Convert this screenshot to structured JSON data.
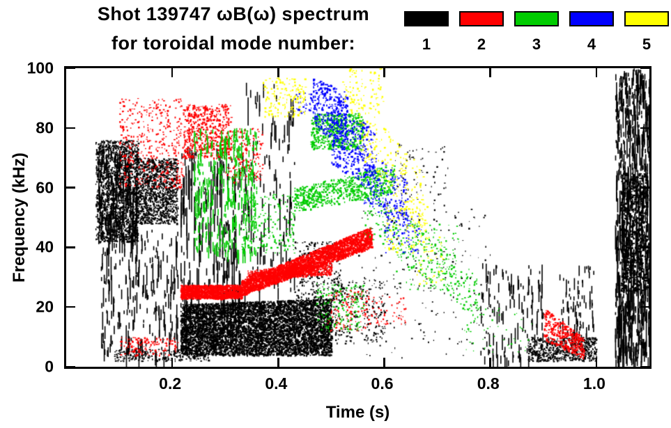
{
  "header": {
    "title_line1": "Shot 139747 ωB(ω) spectrum",
    "title_line2": "for toroidal mode number:"
  },
  "legend": {
    "items": [
      {
        "label": "1",
        "color": "#000000"
      },
      {
        "label": "2",
        "color": "#ff0000"
      },
      {
        "label": "3",
        "color": "#00cc00"
      },
      {
        "label": "4",
        "color": "#0000ff"
      },
      {
        "label": "5",
        "color": "#ffff00"
      }
    ]
  },
  "chart_data": {
    "type": "scatter",
    "title": "Shot 139747 ωB(ω) spectrum for toroidal mode number",
    "xlabel": "Time (s)",
    "ylabel": "Frequency (kHz)",
    "xlim": [
      0.0,
      1.1
    ],
    "ylim": [
      0,
      100
    ],
    "grid": false,
    "legend_position": "top-right",
    "xticks": [
      {
        "value": 0.2,
        "label": "0.2"
      },
      {
        "value": 0.4,
        "label": "0.4"
      },
      {
        "value": 0.6,
        "label": "0.6"
      },
      {
        "value": 0.8,
        "label": "0.8"
      },
      {
        "value": 1.0,
        "label": "1.0"
      }
    ],
    "yticks": [
      {
        "value": 0,
        "label": "0"
      },
      {
        "value": 20,
        "label": "20"
      },
      {
        "value": 40,
        "label": "40"
      },
      {
        "value": 60,
        "label": "60"
      },
      {
        "value": 80,
        "label": "80"
      },
      {
        "value": 100,
        "label": "100"
      }
    ],
    "series": [
      {
        "name": "n=1",
        "mode_number": 1,
        "color": "#000000",
        "clusters": [
          {
            "t": [
              0.055,
              0.135
            ],
            "f0": [
              42,
              76
            ],
            "n": 1600,
            "size": 2
          },
          {
            "t": [
              0.06,
              0.135
            ],
            "f0": [
              44,
              74
            ],
            "n": 260,
            "streak": 10
          },
          {
            "t": [
              0.13,
              0.21
            ],
            "f0": [
              48,
              70
            ],
            "n": 1300,
            "size": 2
          },
          {
            "t": [
              0.065,
              0.21
            ],
            "f0": [
              5,
              46
            ],
            "n": 240,
            "streak": 13
          },
          {
            "t": [
              0.09,
              0.27
            ],
            "f0": [
              2,
              6
            ],
            "n": 240,
            "size": 2
          },
          {
            "t": [
              0.215,
              0.5
            ],
            "f0": [
              4,
              21
            ],
            "f1": [
              4,
              23
            ],
            "n": 6000,
            "size": 2.2
          },
          {
            "t": [
              0.215,
              0.33
            ],
            "f0": [
              20,
              74
            ],
            "n": 210,
            "streak": 24
          },
          {
            "t": [
              0.33,
              0.43
            ],
            "f0": [
              25,
              97
            ],
            "n": 120,
            "streak": 16
          },
          {
            "t": [
              0.43,
              0.52
            ],
            "f0": [
              22,
              42
            ],
            "n": 280,
            "size": 2
          },
          {
            "t": [
              0.5,
              0.6
            ],
            "f0": [
              8,
              30
            ],
            "n": 220,
            "size": 2
          },
          {
            "t": [
              0.55,
              0.8
            ],
            "f0": [
              3,
              55
            ],
            "n": 200,
            "size": 1.8
          },
          {
            "t": [
              0.62,
              0.72
            ],
            "f0": [
              55,
              75
            ],
            "n": 70,
            "size": 1.8
          },
          {
            "t": [
              0.78,
              0.9
            ],
            "f0": [
              2,
              35
            ],
            "n": 130,
            "streak": 9
          },
          {
            "t": [
              0.87,
              1.0
            ],
            "f0": [
              2,
              10
            ],
            "n": 650,
            "size": 2
          },
          {
            "t": [
              0.93,
              0.995
            ],
            "f0": [
              10,
              34
            ],
            "n": 80,
            "streak": 8
          },
          {
            "t": [
              1.035,
              1.1
            ],
            "f0": [
              2,
              100
            ],
            "n": 800,
            "streak": 15
          },
          {
            "t": [
              1.045,
              1.095
            ],
            "f0": [
              25,
              65
            ],
            "n": 650,
            "size": 2.5
          }
        ]
      },
      {
        "name": "n=2",
        "mode_number": 2,
        "color": "#ff0000",
        "clusters": [
          {
            "t": [
              0.1,
              0.22
            ],
            "f0": [
              60,
              90
            ],
            "n": 420,
            "size": 2
          },
          {
            "t": [
              0.22,
              0.31
            ],
            "f0": [
              70,
              88
            ],
            "n": 520,
            "size": 2.2
          },
          {
            "t": [
              0.3,
              0.37
            ],
            "f0": [
              62,
              80
            ],
            "n": 180,
            "size": 2
          },
          {
            "t": [
              0.215,
              0.33
            ],
            "f0": [
              23,
              27.5
            ],
            "n": 1300,
            "size": 2.2
          },
          {
            "t": [
              0.33,
              0.575
            ],
            "f0": [
              24,
              29
            ],
            "f1": [
              40,
              47
            ],
            "n": 2500,
            "size": 2.3
          },
          {
            "t": [
              0.34,
              0.5
            ],
            "f0": [
              29,
              32.5
            ],
            "f1": [
              31,
              34.5
            ],
            "n": 650,
            "size": 2
          },
          {
            "t": [
              0.1,
              0.21
            ],
            "f0": [
              4,
              10
            ],
            "n": 140,
            "size": 2
          },
          {
            "t": [
              0.49,
              0.57
            ],
            "f0": [
              12,
              26
            ],
            "n": 110,
            "size": 2
          },
          {
            "t": [
              0.9,
              0.975
            ],
            "f0": [
              9,
              20
            ],
            "f1": [
              3,
              10
            ],
            "n": 350,
            "size": 2.2
          },
          {
            "t": [
              0.57,
              0.64
            ],
            "f0": [
              14,
              24
            ],
            "n": 55,
            "size": 1.8
          }
        ]
      },
      {
        "name": "n=3",
        "mode_number": 3,
        "color": "#00cc00",
        "clusters": [
          {
            "t": [
              0.24,
              0.36
            ],
            "f0": [
              38,
              80
            ],
            "n": 340,
            "streak": 7
          },
          {
            "t": [
              0.33,
              0.43
            ],
            "f0": [
              38,
              58
            ],
            "n": 200,
            "size": 2
          },
          {
            "t": [
              0.43,
              0.62
            ],
            "f0": [
              52,
              60
            ],
            "f1": [
              58,
              68
            ],
            "n": 650,
            "size": 2.2
          },
          {
            "t": [
              0.46,
              0.56
            ],
            "f0": [
              73,
              85
            ],
            "n": 520,
            "size": 2.2
          },
          {
            "t": [
              0.56,
              0.78
            ],
            "f0": [
              45,
              62
            ],
            "f1": [
              15,
              32
            ],
            "n": 280,
            "size": 2
          },
          {
            "t": [
              0.47,
              0.56
            ],
            "f0": [
              12,
              28
            ],
            "n": 160,
            "size": 2
          },
          {
            "t": [
              0.62,
              0.74
            ],
            "f0": [
              25,
              48
            ],
            "n": 110,
            "size": 1.8
          },
          {
            "t": [
              0.75,
              0.88
            ],
            "f0": [
              5,
              20
            ],
            "n": 50,
            "size": 1.8
          }
        ]
      },
      {
        "name": "n=4",
        "mode_number": 4,
        "color": "#0000ff",
        "clusters": [
          {
            "t": [
              0.465,
              0.53
            ],
            "f0": [
              80,
              97
            ],
            "f1": [
              74,
              92
            ],
            "n": 300,
            "size": 2.2
          },
          {
            "t": [
              0.5,
              0.58
            ],
            "f0": [
              68,
              88
            ],
            "f1": [
              58,
              80
            ],
            "n": 300,
            "size": 2.2
          },
          {
            "t": [
              0.56,
              0.645
            ],
            "f0": [
              55,
              75
            ],
            "f1": [
              45,
              62
            ],
            "n": 230,
            "size": 2
          },
          {
            "t": [
              0.6,
              0.67
            ],
            "f0": [
              38,
              52
            ],
            "n": 80,
            "size": 2
          },
          {
            "t": [
              0.43,
              0.465
            ],
            "f0": [
              85,
              92
            ],
            "n": 40,
            "size": 2
          }
        ]
      },
      {
        "name": "n=5",
        "mode_number": 5,
        "color": "#ffff00",
        "clusters": [
          {
            "t": [
              0.37,
              0.45
            ],
            "f0": [
              84,
              97
            ],
            "n": 150,
            "size": 2.2
          },
          {
            "t": [
              0.52,
              0.6
            ],
            "f0": [
              85,
              100
            ],
            "n": 110,
            "size": 2
          },
          {
            "t": [
              0.55,
              0.68
            ],
            "f0": [
              70,
              90
            ],
            "f1": [
              45,
              65
            ],
            "n": 200,
            "size": 2
          },
          {
            "t": [
              0.6,
              0.68
            ],
            "f0": [
              38,
              54
            ],
            "n": 100,
            "size": 2
          },
          {
            "t": [
              0.66,
              0.71
            ],
            "f0": [
              28,
              44
            ],
            "n": 45,
            "size": 2
          }
        ]
      }
    ]
  }
}
